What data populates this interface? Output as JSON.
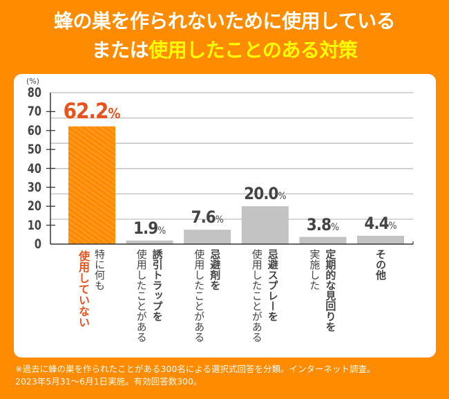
{
  "header": {
    "title_line1": "蜂の巣を作られないために使用している",
    "title_line2_white": "または",
    "title_line2_highlight": "使用したことのある対策"
  },
  "colors": {
    "background": "#FF8C00",
    "highlight_text": "#FFFF00",
    "accent_bar": "#FF8A00",
    "accent_text": "#E8531D",
    "gray_bar": "#C3C3C3"
  },
  "chart_data": {
    "type": "bar",
    "title": "蜂の巣を作られないために使用しているまたは使用したことのある対策",
    "ylabel": "(%)",
    "ylim": [
      0,
      80
    ],
    "yticks": [
      "0",
      "10",
      "20",
      "30",
      "40",
      "50",
      "60",
      "70",
      "80"
    ],
    "unit": "%",
    "categories": [
      {
        "lines": [
          "特に何も",
          "使用していない"
        ],
        "highlight_line": 1
      },
      {
        "lines": [
          "誘引トラップを",
          "使用したことがある"
        ]
      },
      {
        "lines": [
          "忌避剤を",
          "使用したことがある"
        ]
      },
      {
        "lines": [
          "忌避スプレーを",
          "使用したことがある"
        ]
      },
      {
        "lines": [
          "定期的な見回りを",
          "実施した"
        ]
      },
      {
        "lines": [
          "その他"
        ]
      }
    ],
    "values": [
      62.2,
      1.9,
      7.6,
      20.0,
      3.8,
      4.4
    ],
    "value_labels": [
      "62.2",
      "1.9",
      "7.6",
      "20.0",
      "3.8",
      "4.4"
    ],
    "highlighted_index": 0,
    "grid": true
  },
  "footer": {
    "note_line1": "※過去に蜂の巣を作られたことがある300名による選択式回答を分類。インターネット調査。",
    "note_line2": "2023年5月31～6月1日実施。有効回答数300。"
  }
}
